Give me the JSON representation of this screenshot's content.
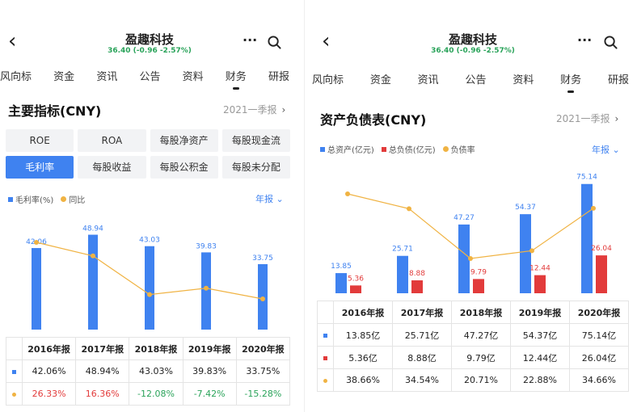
{
  "left": {
    "header": {
      "title": "盈趣科技",
      "quote": "36.40 (-0.96 -2.57%)"
    },
    "tabs": [
      "风向标",
      "资金",
      "资讯",
      "公告",
      "资料",
      "财务",
      "研报"
    ],
    "active_tab": "财务",
    "section_title": "主要指标(CNY)",
    "period": "2021一季报",
    "metrics": [
      "ROE",
      "ROA",
      "每股净资产",
      "每股现金流",
      "毛利率",
      "每股收益",
      "每股公积金",
      "每股未分配"
    ],
    "active_metric": "毛利率",
    "legend": [
      "毛利率(%)",
      "同比"
    ],
    "annual_label": "年报",
    "chart_data": {
      "type": "bar",
      "categories": [
        "2016年报",
        "2017年报",
        "2018年报",
        "2019年报",
        "2020年报"
      ],
      "series": [
        {
          "name": "毛利率(%)",
          "values": [
            42.06,
            48.94,
            43.03,
            39.83,
            33.75
          ],
          "labels": [
            "42.06",
            "48.94",
            "43.03",
            "39.83",
            "33.75"
          ]
        },
        {
          "name": "同比",
          "values": [
            26.33,
            16.36,
            -12.08,
            -7.42,
            -15.28
          ]
        }
      ]
    },
    "table": {
      "headers": [
        "2016年报",
        "2017年报",
        "2018年报",
        "2019年报",
        "2020年报"
      ],
      "rows": [
        [
          "42.06%",
          "48.94%",
          "43.03%",
          "39.83%",
          "33.75%"
        ],
        [
          "26.33%",
          "16.36%",
          "-12.08%",
          "-7.42%",
          "-15.28%"
        ]
      ]
    },
    "colors": {
      "bar": "#3f82f0",
      "line": "#f0b343",
      "positive": "#e23b3b",
      "negative": "#2aa35a"
    }
  },
  "right": {
    "header": {
      "title": "盈趣科技",
      "quote": "36.40 (-0.96 -2.57%)"
    },
    "tabs": [
      "风向标",
      "资金",
      "资讯",
      "公告",
      "资料",
      "财务",
      "研报"
    ],
    "active_tab": "财务",
    "section_title": "资产负债表(CNY)",
    "period": "2021一季报",
    "legend": [
      "总资产(亿元)",
      "总负债(亿元)",
      "负债率"
    ],
    "annual_label": "年报",
    "chart_data": {
      "type": "bar",
      "categories": [
        "2016年报",
        "2017年报",
        "2018年报",
        "2019年报",
        "2020年报"
      ],
      "series": [
        {
          "name": "总资产(亿元)",
          "values": [
            13.85,
            25.71,
            47.27,
            54.37,
            75.14
          ],
          "labels": [
            "13.85",
            "25.71",
            "47.27",
            "54.37",
            "75.14"
          ]
        },
        {
          "name": "总负债(亿元)",
          "values": [
            5.36,
            8.88,
            9.79,
            12.44,
            26.04
          ],
          "labels": [
            "5.36",
            "8.88",
            "9.79",
            "12.44",
            "26.04"
          ]
        },
        {
          "name": "负债率",
          "values": [
            38.66,
            34.54,
            20.71,
            22.88,
            34.66
          ]
        }
      ]
    },
    "table": {
      "headers": [
        "2016年报",
        "2017年报",
        "2018年报",
        "2019年报",
        "2020年报"
      ],
      "rows": [
        [
          "13.85亿",
          "25.71亿",
          "47.27亿",
          "54.37亿",
          "75.14亿"
        ],
        [
          "5.36亿",
          "8.88亿",
          "9.79亿",
          "12.44亿",
          "26.04亿"
        ],
        [
          "38.66%",
          "34.54%",
          "20.71%",
          "22.88%",
          "34.66%"
        ]
      ]
    },
    "colors": {
      "assets": "#3f82f0",
      "liabilities": "#e23b3b",
      "ratio": "#f0b343"
    }
  }
}
